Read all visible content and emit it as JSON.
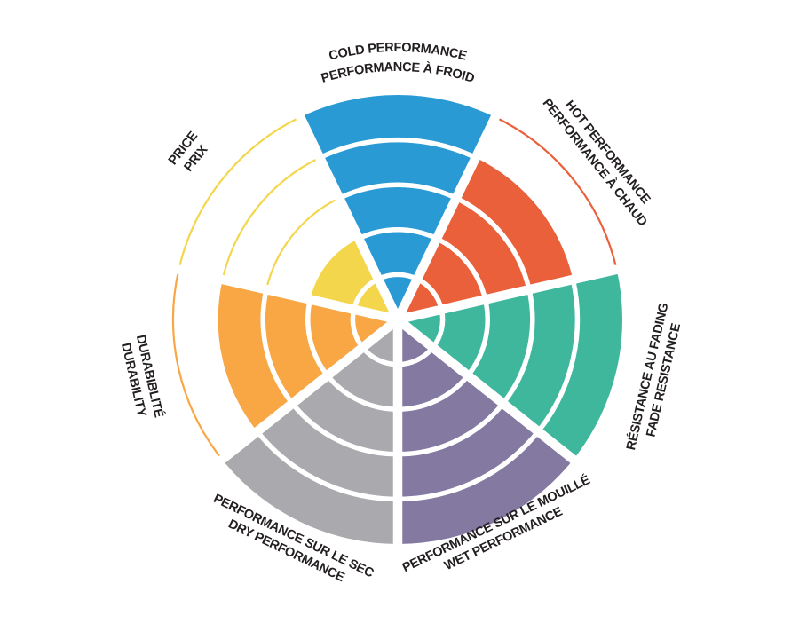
{
  "page": {
    "background_color": "#ffffff",
    "text_color": "#231f20"
  },
  "chart_data": {
    "type": "polar-wheel",
    "description": "Seven-sector circular rating wheel (tire/brake performance infographic). Each sector is a wedge filled from the center out to its score on a 5-ring scale; ring boundaries inside the fill are thin white arcs; ring boundaries beyond the fill are thin arcs in the sector color. Bilingual English/French labels around the rim.",
    "rings_total": 5,
    "grid": "concentric ring dividers, no numeric tick labels",
    "legend": "none",
    "sector_order_clockwise_from_top": [
      "cold",
      "hot",
      "fade",
      "wet",
      "dry",
      "durability",
      "price"
    ],
    "sectors": [
      {
        "id": "cold",
        "lines": [
          "COLD PERFORMANCE",
          "PERFORMANCE À FROID"
        ],
        "value": 5,
        "max": 5,
        "color": "#2a9ad5"
      },
      {
        "id": "hot",
        "lines": [
          "HOT PERFORMANCE",
          "PERFORMANCE À CHAUD"
        ],
        "value": 4,
        "max": 5,
        "color": "#e9603a"
      },
      {
        "id": "fade",
        "lines": [
          "RÉSISTANCE AU FADING",
          "FADE RESISTANCE"
        ],
        "value": 5,
        "max": 5,
        "color": "#3eb79d"
      },
      {
        "id": "wet",
        "lines": [
          "PERFORMANCE SUR LE MOUILLÉ",
          "WET PERFORMANCE"
        ],
        "value": 5,
        "max": 5,
        "color": "#8379a1"
      },
      {
        "id": "dry",
        "lines": [
          "PERFORMANCE SUR LE SEC",
          "DRY PERFORMANCE"
        ],
        "value": 5,
        "max": 5,
        "color": "#aaaaae"
      },
      {
        "id": "durability",
        "lines": [
          "DURABIBLITÉ",
          "DURABILITY"
        ],
        "value": 4,
        "max": 5,
        "color": "#f8a744"
      },
      {
        "id": "price",
        "lines": [
          "PRICE",
          "PRIX"
        ],
        "value": 2,
        "max": 5,
        "color": "#f4d64c"
      }
    ]
  }
}
